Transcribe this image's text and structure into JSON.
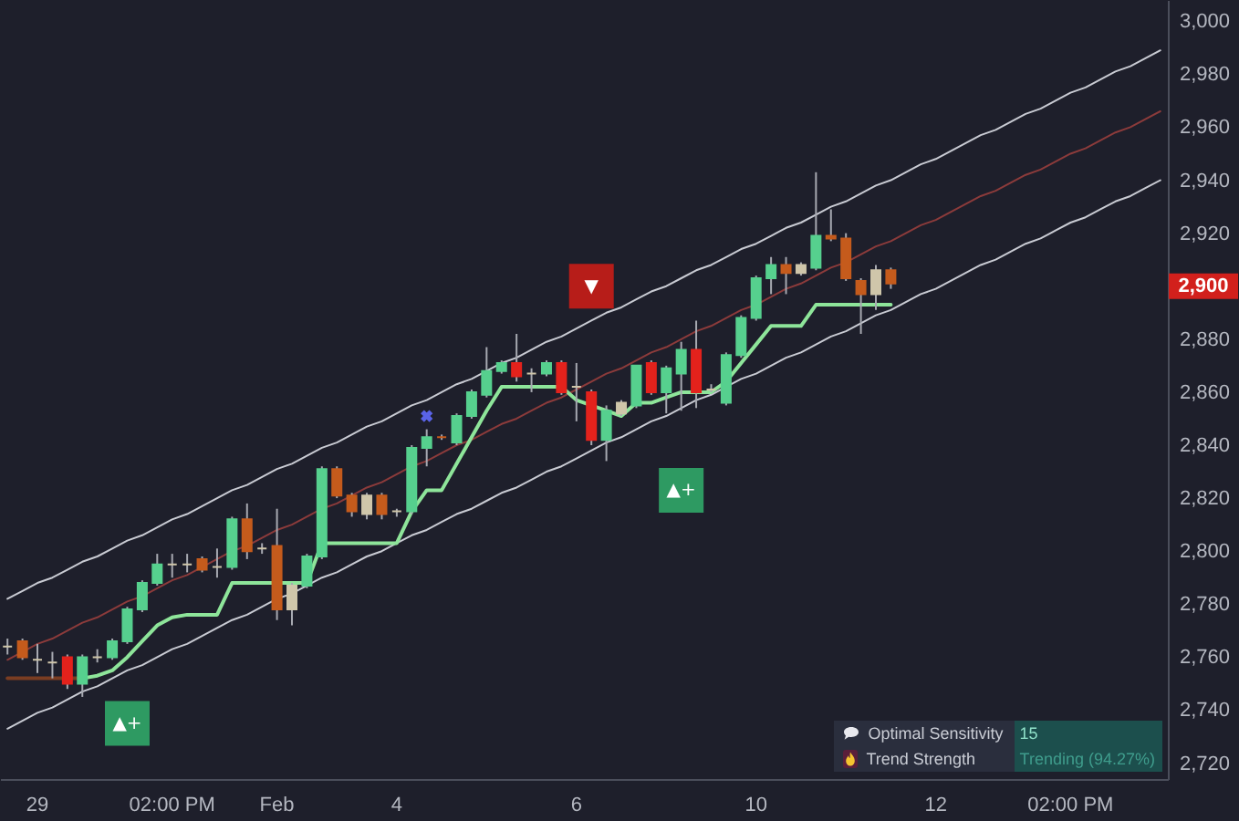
{
  "chart_data": {
    "type": "candlestick",
    "categories": [
      null,
      null,
      "29",
      null,
      null,
      null,
      null,
      null,
      null,
      null,
      null,
      "02:00 PM",
      null,
      null,
      null,
      null,
      null,
      null,
      "Feb",
      null,
      null,
      null,
      null,
      null,
      null,
      null,
      "4",
      null,
      null,
      null,
      null,
      null,
      null,
      null,
      null,
      null,
      null,
      null,
      "6",
      null,
      null,
      null,
      null,
      null,
      null,
      null,
      null,
      null,
      null,
      null,
      "10",
      null,
      null,
      null,
      null,
      null,
      null,
      null,
      null,
      null,
      null,
      null,
      "12",
      null,
      null,
      null,
      null,
      null,
      null,
      null,
      null,
      "02:00 PM",
      null,
      null,
      null,
      null,
      null,
      null
    ],
    "ohlc": [
      [
        2764,
        2767,
        2761,
        2764
      ],
      [
        2766,
        2767,
        2759,
        2760
      ],
      [
        2759,
        2765,
        2754,
        2759
      ],
      [
        2758,
        2762,
        2752,
        2758
      ],
      [
        2760,
        2761,
        2748,
        2750
      ],
      [
        2750,
        2761,
        2745,
        2760
      ],
      [
        2760,
        2763,
        2758,
        2760
      ],
      [
        2760,
        2767,
        2759,
        2766
      ],
      [
        2766,
        2779,
        2765,
        2778
      ],
      [
        2778,
        2789,
        2777,
        2788
      ],
      [
        2788,
        2799,
        2787,
        2795
      ],
      [
        2795,
        2799,
        2790,
        2795
      ],
      [
        2795,
        2799,
        2792,
        2795
      ],
      [
        2797,
        2798,
        2792,
        2793
      ],
      [
        2794,
        2801,
        2790,
        2794
      ],
      [
        2794,
        2813,
        2793,
        2812
      ],
      [
        2812,
        2818,
        2797,
        2800
      ],
      [
        2801,
        2803,
        2799,
        2801
      ],
      [
        2802,
        2816,
        2774,
        2778
      ],
      [
        2778,
        2788,
        2772,
        2787
      ],
      [
        2787,
        2799,
        2786,
        2798
      ],
      [
        2798,
        2832,
        2797,
        2831
      ],
      [
        2831,
        2832,
        2820,
        2821
      ],
      [
        2821,
        2822,
        2813,
        2815
      ],
      [
        2814,
        2822,
        2812,
        2821
      ],
      [
        2821,
        2822,
        2812,
        2814
      ],
      [
        2815,
        2816,
        2813,
        2815
      ],
      [
        2815,
        2840,
        2814,
        2839
      ],
      [
        2839,
        2846,
        2832,
        2843
      ],
      [
        2843,
        2844,
        2842,
        2843
      ],
      [
        2841,
        2852,
        2840,
        2851
      ],
      [
        2851,
        2861,
        2850,
        2860
      ],
      [
        2859,
        2877,
        2858,
        2868
      ],
      [
        2868,
        2872,
        2867,
        2871
      ],
      [
        2871,
        2882,
        2864,
        2866
      ],
      [
        2867,
        2869,
        2860,
        2867
      ],
      [
        2867,
        2872,
        2866,
        2871
      ],
      [
        2871,
        2872,
        2859,
        2860
      ],
      [
        2862,
        2871,
        2849,
        2862
      ],
      [
        2860,
        2861,
        2840,
        2842
      ],
      [
        2842,
        2855,
        2834,
        2853
      ],
      [
        2852,
        2857,
        2851,
        2856
      ],
      [
        2855,
        2870,
        2854,
        2870
      ],
      [
        2871,
        2872,
        2859,
        2860
      ],
      [
        2860,
        2870,
        2852,
        2869
      ],
      [
        2867,
        2879,
        2853,
        2876
      ],
      [
        2876,
        2887,
        2854,
        2860
      ],
      [
        2861,
        2863,
        2860,
        2861
      ],
      [
        2856,
        2875,
        2855,
        2874
      ],
      [
        2874,
        2889,
        2873,
        2888
      ],
      [
        2888,
        2904,
        2887,
        2903
      ],
      [
        2903,
        2911,
        2897,
        2908
      ],
      [
        2908,
        2911,
        2897,
        2905
      ],
      [
        2905,
        2909,
        2904,
        2908
      ],
      [
        2907,
        2943,
        2906,
        2919
      ],
      [
        2919,
        2929,
        2917,
        2918
      ],
      [
        2918,
        2920,
        2902,
        2903
      ],
      [
        2902,
        2903,
        2882,
        2897
      ],
      [
        2897,
        2908,
        2891,
        2906
      ],
      [
        2906,
        2907,
        2899,
        2901
      ],
      null,
      null,
      null,
      null,
      null,
      null,
      null,
      null,
      null,
      null,
      null,
      null,
      null,
      null,
      null,
      null,
      null,
      null
    ],
    "colors": [
      "#cfc6aa",
      "#c55b1c",
      "#cfc6aa",
      "#cfc6aa",
      "#e3221c",
      "#56d08e",
      "#cfc6aa",
      "#56d08e",
      "#56d08e",
      "#56d08e",
      "#56d08e",
      "#cfc6aa",
      "#cfc6aa",
      "#c55b1c",
      "#cfc6aa",
      "#56d08e",
      "#c55b1c",
      "#cfc6aa",
      "#c55b1c",
      "#cfc6aa",
      "#56d08e",
      "#56d08e",
      "#c55b1c",
      "#c55b1c",
      "#cfc6aa",
      "#c55b1c",
      "#cfc6aa",
      "#56d08e",
      "#56d08e",
      "#c55b1c",
      "#56d08e",
      "#56d08e",
      "#56d08e",
      "#56d08e",
      "#e3221c",
      "#cfc6aa",
      "#56d08e",
      "#e3221c",
      "#cfc6aa",
      "#e3221c",
      "#56d08e",
      "#cfc6aa",
      "#56d08e",
      "#e3221c",
      "#56d08e",
      "#56d08e",
      "#e3221c",
      "#cfc6aa",
      "#56d08e",
      "#56d08e",
      "#56d08e",
      "#56d08e",
      "#c55b1c",
      "#cfc6aa",
      "#56d08e",
      "#c55b1c",
      "#c55b1c",
      "#c55b1c",
      "#cfc6aa",
      "#c55b1c",
      null,
      null,
      null,
      null,
      null,
      null,
      null,
      null,
      null,
      null,
      null,
      null,
      null,
      null,
      null,
      null,
      null,
      null
    ],
    "series": [
      {
        "type": "line",
        "color": "#c9cbd3",
        "values": [
          2782,
          2785,
          2788,
          2790,
          2793,
          2796,
          2798,
          2801,
          2804,
          2806,
          2809,
          2812,
          2814,
          2817,
          2820,
          2823,
          2825,
          2828,
          2831,
          2833,
          2836,
          2839,
          2841,
          2844,
          2847,
          2849,
          2852,
          2855,
          2857,
          2860,
          2863,
          2865,
          2868,
          2871,
          2873,
          2876,
          2879,
          2881,
          2884,
          2887,
          2890,
          2892,
          2895,
          2898,
          2900,
          2903,
          2906,
          2908,
          2911,
          2914,
          2916,
          2919,
          2922,
          2924,
          2927,
          2930,
          2932,
          2935,
          2938,
          2940,
          2943,
          2946,
          2948,
          2951,
          2954,
          2957,
          2959,
          2962,
          2965,
          2967,
          2970,
          2973,
          2975,
          2978,
          2981,
          2983,
          2986,
          2989
        ]
      },
      {
        "type": "line",
        "color": "#8c3b3b",
        "values": [
          2759,
          2762,
          2765,
          2767,
          2770,
          2773,
          2775,
          2778,
          2781,
          2783,
          2786,
          2789,
          2791,
          2794,
          2797,
          2800,
          2802,
          2805,
          2808,
          2810,
          2813,
          2816,
          2818,
          2821,
          2824,
          2826,
          2829,
          2832,
          2834,
          2837,
          2840,
          2842,
          2845,
          2848,
          2850,
          2853,
          2856,
          2858,
          2861,
          2864,
          2867,
          2869,
          2872,
          2875,
          2877,
          2880,
          2883,
          2885,
          2888,
          2891,
          2893,
          2896,
          2899,
          2901,
          2904,
          2907,
          2909,
          2912,
          2915,
          2917,
          2920,
          2923,
          2925,
          2928,
          2931,
          2934,
          2936,
          2939,
          2942,
          2944,
          2947,
          2950,
          2952,
          2955,
          2958,
          2960,
          2963,
          2966
        ]
      },
      {
        "type": "line",
        "color": "#c9cbd3",
        "values": [
          2733,
          2736,
          2739,
          2741,
          2744,
          2747,
          2749,
          2752,
          2755,
          2757,
          2760,
          2763,
          2765,
          2768,
          2771,
          2774,
          2776,
          2779,
          2782,
          2784,
          2787,
          2790,
          2792,
          2795,
          2798,
          2800,
          2803,
          2806,
          2808,
          2811,
          2814,
          2816,
          2819,
          2822,
          2824,
          2827,
          2830,
          2832,
          2835,
          2838,
          2841,
          2843,
          2846,
          2849,
          2851,
          2854,
          2857,
          2859,
          2862,
          2865,
          2867,
          2870,
          2873,
          2875,
          2878,
          2881,
          2883,
          2886,
          2889,
          2891,
          2894,
          2897,
          2899,
          2902,
          2905,
          2908,
          2910,
          2913,
          2916,
          2918,
          2921,
          2924,
          2926,
          2929,
          2932,
          2934,
          2937,
          2940
        ]
      },
      {
        "type": "line",
        "color": "#7a3d22",
        "values": [
          2752,
          2752,
          2752,
          2752,
          2752,
          2752,
          null,
          null,
          null,
          null,
          null,
          null,
          null,
          null,
          null,
          null,
          null,
          null,
          null,
          null,
          null,
          null,
          null,
          null,
          null,
          null,
          null,
          null,
          null,
          null,
          null,
          null,
          null,
          null,
          null,
          null,
          null,
          null,
          null,
          null,
          null,
          null,
          null,
          null,
          null,
          null,
          null,
          null,
          null,
          null,
          null,
          null,
          null,
          null,
          null,
          null,
          null,
          null,
          null,
          null,
          null,
          null,
          null,
          null,
          null,
          null,
          null,
          null,
          null,
          null,
          null,
          null,
          null,
          null,
          null,
          null,
          null,
          null
        ]
      },
      {
        "type": "line",
        "color": "#8ee59a",
        "values": [
          null,
          null,
          null,
          null,
          null,
          2752,
          2753,
          2755,
          2760,
          2766,
          2772,
          2775,
          2776,
          2776,
          2776,
          2788,
          2788,
          2788,
          2788,
          2788,
          2788,
          2803,
          2803,
          2803,
          2803,
          2803,
          2803,
          2815,
          2823,
          2823,
          2833,
          2843,
          2853,
          2862,
          2862,
          2862,
          2862,
          2862,
          2857,
          2855,
          2853,
          2851,
          2856,
          2856,
          2858,
          2860,
          2860,
          2860,
          2864,
          2871,
          2878,
          2885,
          2885,
          2885,
          2893,
          2893,
          2893,
          2893,
          2893,
          2893,
          null,
          null,
          null,
          null,
          null,
          null,
          null,
          null,
          null,
          null,
          null,
          null,
          null,
          null,
          null,
          null,
          null,
          null
        ]
      },
      {
        "type": "scatter",
        "color": "#5a63e8",
        "marker": "cross",
        "values": [
          null,
          null,
          null,
          null,
          null,
          null,
          null,
          null,
          null,
          null,
          null,
          null,
          null,
          null,
          null,
          null,
          null,
          null,
          null,
          null,
          null,
          null,
          null,
          null,
          null,
          null,
          null,
          null,
          2851,
          null,
          null,
          null,
          null,
          null,
          null,
          null,
          null,
          null,
          null,
          null,
          null,
          null,
          null,
          null,
          null,
          null,
          null,
          null,
          null,
          null,
          null,
          null,
          null,
          null,
          null,
          null,
          null,
          null,
          null,
          null,
          null,
          null,
          null,
          null,
          null,
          null,
          null,
          null,
          null,
          null,
          null,
          null,
          null,
          null,
          null,
          null,
          null,
          null
        ]
      },
      {
        "type": "scatter",
        "color": "#2e9a62",
        "marker": "square",
        "values": [
          null,
          null,
          null,
          null,
          null,
          null,
          null,
          null,
          2735,
          null,
          null,
          null,
          null,
          null,
          null,
          null,
          null,
          null,
          null,
          null,
          null,
          null,
          null,
          null,
          null,
          null,
          null,
          null,
          null,
          null,
          null,
          null,
          null,
          null,
          null,
          null,
          null,
          null,
          null,
          null,
          null,
          null,
          null,
          null,
          null,
          2823,
          null,
          null,
          null,
          null,
          null,
          null,
          null,
          null,
          null,
          null,
          null,
          null,
          null,
          null,
          null,
          null,
          null,
          null,
          null,
          null,
          null,
          null,
          null,
          null,
          null,
          null,
          null,
          null,
          null,
          null,
          null,
          null
        ],
        "value_labels": [
          null,
          null,
          null,
          null,
          null,
          null,
          null,
          null,
          "▲+",
          null,
          null,
          null,
          null,
          null,
          null,
          null,
          null,
          null,
          null,
          null,
          null,
          null,
          null,
          null,
          null,
          null,
          null,
          null,
          null,
          null,
          null,
          null,
          null,
          null,
          null,
          null,
          null,
          null,
          null,
          null,
          null,
          null,
          null,
          null,
          null,
          "▲+",
          null,
          null,
          null,
          null,
          null,
          null,
          null,
          null,
          null,
          null,
          null,
          null,
          null,
          null,
          null,
          null,
          null,
          null,
          null,
          null,
          null,
          null,
          null,
          null,
          null,
          null,
          null,
          null,
          null,
          null,
          null,
          null
        ]
      },
      {
        "type": "scatter",
        "color": "#b71d19",
        "marker": "square",
        "values": [
          null,
          null,
          null,
          null,
          null,
          null,
          null,
          null,
          null,
          null,
          null,
          null,
          null,
          null,
          null,
          null,
          null,
          null,
          null,
          null,
          null,
          null,
          null,
          null,
          null,
          null,
          null,
          null,
          null,
          null,
          null,
          null,
          null,
          null,
          null,
          null,
          null,
          null,
          null,
          2900,
          null,
          null,
          null,
          null,
          null,
          null,
          null,
          null,
          null,
          null,
          null,
          null,
          null,
          null,
          null,
          null,
          null,
          null,
          null,
          null,
          null,
          null,
          null,
          null,
          null,
          null,
          null,
          null,
          null,
          null,
          null,
          null,
          null,
          null,
          null,
          null,
          null,
          null
        ],
        "value_labels": [
          null,
          null,
          null,
          null,
          null,
          null,
          null,
          null,
          null,
          null,
          null,
          null,
          null,
          null,
          null,
          null,
          null,
          null,
          null,
          null,
          null,
          null,
          null,
          null,
          null,
          null,
          null,
          null,
          null,
          null,
          null,
          null,
          null,
          null,
          null,
          null,
          null,
          null,
          null,
          "▼",
          null,
          null,
          null,
          null,
          null,
          null,
          null,
          null,
          null,
          null,
          null,
          null,
          null,
          null,
          null,
          null,
          null,
          null,
          null,
          null,
          null,
          null,
          null,
          null,
          null,
          null,
          null,
          null,
          null,
          null,
          null,
          null,
          null,
          null,
          null,
          null,
          null,
          null
        ]
      }
    ],
    "ylim": [
      2714,
      3008
    ],
    "yticks": [
      {
        "value": 2720,
        "label": "2,720"
      },
      {
        "value": 2740,
        "label": "2,740"
      },
      {
        "value": 2760,
        "label": "2,760"
      },
      {
        "value": 2780,
        "label": "2,780"
      },
      {
        "value": 2800,
        "label": "2,800"
      },
      {
        "value": 2820,
        "label": "2,820"
      },
      {
        "value": 2840,
        "label": "2,840"
      },
      {
        "value": 2860,
        "label": "2,860"
      },
      {
        "value": 2880,
        "label": "2,880"
      },
      {
        "value": 2920,
        "label": "2,920"
      },
      {
        "value": 2940,
        "label": "2,940"
      },
      {
        "value": 2960,
        "label": "2,960"
      },
      {
        "value": 2980,
        "label": "2,980"
      },
      {
        "value": 3000,
        "label": "3,000"
      }
    ],
    "annotations": [
      {
        "text": "2,900",
        "y": 2900
      },
      "Optimal Sensitivity",
      "15",
      "Trend Strength",
      "Trending (94.27%)"
    ]
  }
}
